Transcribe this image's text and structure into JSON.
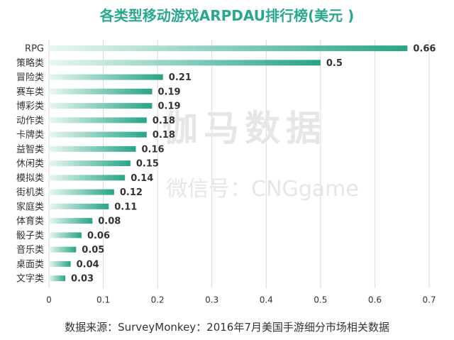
{
  "chart_data": {
    "type": "bar",
    "orientation": "horizontal",
    "title": "各类型移动游戏ARPDAU排行榜(美元 )",
    "categories": [
      "RPG",
      "策略类",
      "冒险类",
      "赛车类",
      "博彩类",
      "动作类",
      "卡牌类",
      "益智类",
      "休闲类",
      "模拟类",
      "街机类",
      "家庭类",
      "体育类",
      "骰子类",
      "音乐类",
      "桌面类",
      "文字类"
    ],
    "values": [
      0.66,
      0.5,
      0.21,
      0.19,
      0.19,
      0.18,
      0.18,
      0.16,
      0.15,
      0.14,
      0.12,
      0.11,
      0.08,
      0.06,
      0.05,
      0.04,
      0.03
    ],
    "value_labels": [
      "0.66",
      "0.5",
      "0.21",
      "0.19",
      "0.19",
      "0.18",
      "0.18",
      "0.16",
      "0.15",
      "0.14",
      "0.12",
      "0.11",
      "0.08",
      "0.06",
      "0.05",
      "0.04",
      "0.03"
    ],
    "xlim": [
      0,
      0.7
    ],
    "x_ticks": [
      "0",
      "0.1",
      "0.2",
      "0.3",
      "0.4",
      "0.5",
      "0.6",
      "0.7"
    ],
    "grid": true,
    "legend": "none",
    "source": "数据来源：SurveyMonkey：2016年7月美国手游细分市场相关数据",
    "watermark_main": "伽马数据",
    "watermark_sub": "微信号：CNGgame"
  },
  "colors": {
    "title": "#2aa88f",
    "bar_start": "#e9f7f3",
    "bar_end": "#27a487",
    "grid": "#d9d9d9",
    "text": "#333333",
    "watermark": "#e6e6e6"
  }
}
